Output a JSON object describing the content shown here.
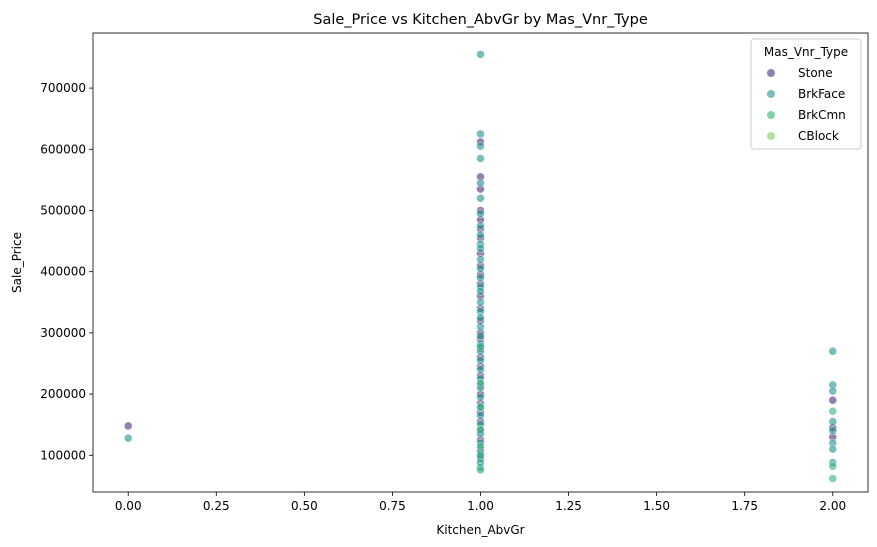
{
  "chart_data": {
    "type": "scatter",
    "title": "Sale_Price vs Kitchen_AbvGr by Mas_Vnr_Type",
    "xlabel": "Kitchen_AbvGr",
    "ylabel": "Sale_Price",
    "xlim": [
      -0.1,
      2.1
    ],
    "ylim": [
      40000,
      790000
    ],
    "xticks": [
      0.0,
      0.25,
      0.5,
      0.75,
      1.0,
      1.25,
      1.5,
      1.75,
      2.0
    ],
    "xtick_labels": [
      "0.00",
      "0.25",
      "0.50",
      "0.75",
      "1.00",
      "1.25",
      "1.50",
      "1.75",
      "2.00"
    ],
    "yticks": [
      100000,
      200000,
      300000,
      400000,
      500000,
      600000,
      700000
    ],
    "ytick_labels": [
      "100000",
      "200000",
      "300000",
      "400000",
      "500000",
      "600000",
      "700000"
    ],
    "grid": false,
    "legend": {
      "title": "Mas_Vnr_Type",
      "placement": "top-right"
    },
    "colors": {
      "Stone": "#472d7b",
      "BrkFace": "#21918c",
      "BrkCmn": "#2fb47c",
      "CBlock": "#7ad151"
    },
    "series": [
      {
        "name": "Stone",
        "points": [
          [
            0,
            148000
          ],
          [
            1,
            612000
          ],
          [
            1,
            555000
          ],
          [
            1,
            535000
          ],
          [
            1,
            500000
          ],
          [
            1,
            485000
          ],
          [
            1,
            470000
          ],
          [
            1,
            455000
          ],
          [
            1,
            430000
          ],
          [
            1,
            410000
          ],
          [
            1,
            395000
          ],
          [
            1,
            380000
          ],
          [
            1,
            360000
          ],
          [
            1,
            340000
          ],
          [
            1,
            320000
          ],
          [
            1,
            300000
          ],
          [
            1,
            290000
          ],
          [
            1,
            275000
          ],
          [
            1,
            260000
          ],
          [
            1,
            245000
          ],
          [
            1,
            230000
          ],
          [
            1,
            215000
          ],
          [
            1,
            200000
          ],
          [
            1,
            185000
          ],
          [
            1,
            170000
          ],
          [
            1,
            155000
          ],
          [
            1,
            140000
          ],
          [
            1,
            125000
          ],
          [
            1,
            110000
          ],
          [
            1,
            98000
          ],
          [
            2,
            190000
          ],
          [
            2,
            145000
          ],
          [
            2,
            130000
          ]
        ]
      },
      {
        "name": "BrkFace",
        "points": [
          [
            0,
            128000
          ],
          [
            1,
            755000
          ],
          [
            1,
            625000
          ],
          [
            1,
            605000
          ],
          [
            1,
            585000
          ],
          [
            1,
            545000
          ],
          [
            1,
            520000
          ],
          [
            1,
            495000
          ],
          [
            1,
            475000
          ],
          [
            1,
            460000
          ],
          [
            1,
            445000
          ],
          [
            1,
            438000
          ],
          [
            1,
            420000
          ],
          [
            1,
            405000
          ],
          [
            1,
            390000
          ],
          [
            1,
            375000
          ],
          [
            1,
            368000
          ],
          [
            1,
            350000
          ],
          [
            1,
            335000
          ],
          [
            1,
            325000
          ],
          [
            1,
            310000
          ],
          [
            1,
            295000
          ],
          [
            1,
            282000
          ],
          [
            1,
            270000
          ],
          [
            1,
            255000
          ],
          [
            1,
            240000
          ],
          [
            1,
            225000
          ],
          [
            1,
            210000
          ],
          [
            1,
            195000
          ],
          [
            1,
            180000
          ],
          [
            1,
            165000
          ],
          [
            1,
            150000
          ],
          [
            1,
            135000
          ],
          [
            1,
            120000
          ],
          [
            1,
            105000
          ],
          [
            1,
            95000
          ],
          [
            1,
            88000
          ],
          [
            1,
            80000
          ],
          [
            2,
            270000
          ],
          [
            2,
            215000
          ],
          [
            2,
            205000
          ],
          [
            2,
            155000
          ],
          [
            2,
            140000
          ],
          [
            2,
            120000
          ],
          [
            2,
            110000
          ],
          [
            2,
            88000
          ]
        ]
      },
      {
        "name": "BrkCmn",
        "points": [
          [
            1,
            278000
          ],
          [
            1,
            218000
          ],
          [
            1,
            178000
          ],
          [
            1,
            142000
          ],
          [
            1,
            115000
          ],
          [
            1,
            100000
          ],
          [
            1,
            76000
          ],
          [
            2,
            172000
          ],
          [
            2,
            82000
          ],
          [
            2,
            62000
          ]
        ]
      },
      {
        "name": "CBlock",
        "points": []
      }
    ]
  }
}
